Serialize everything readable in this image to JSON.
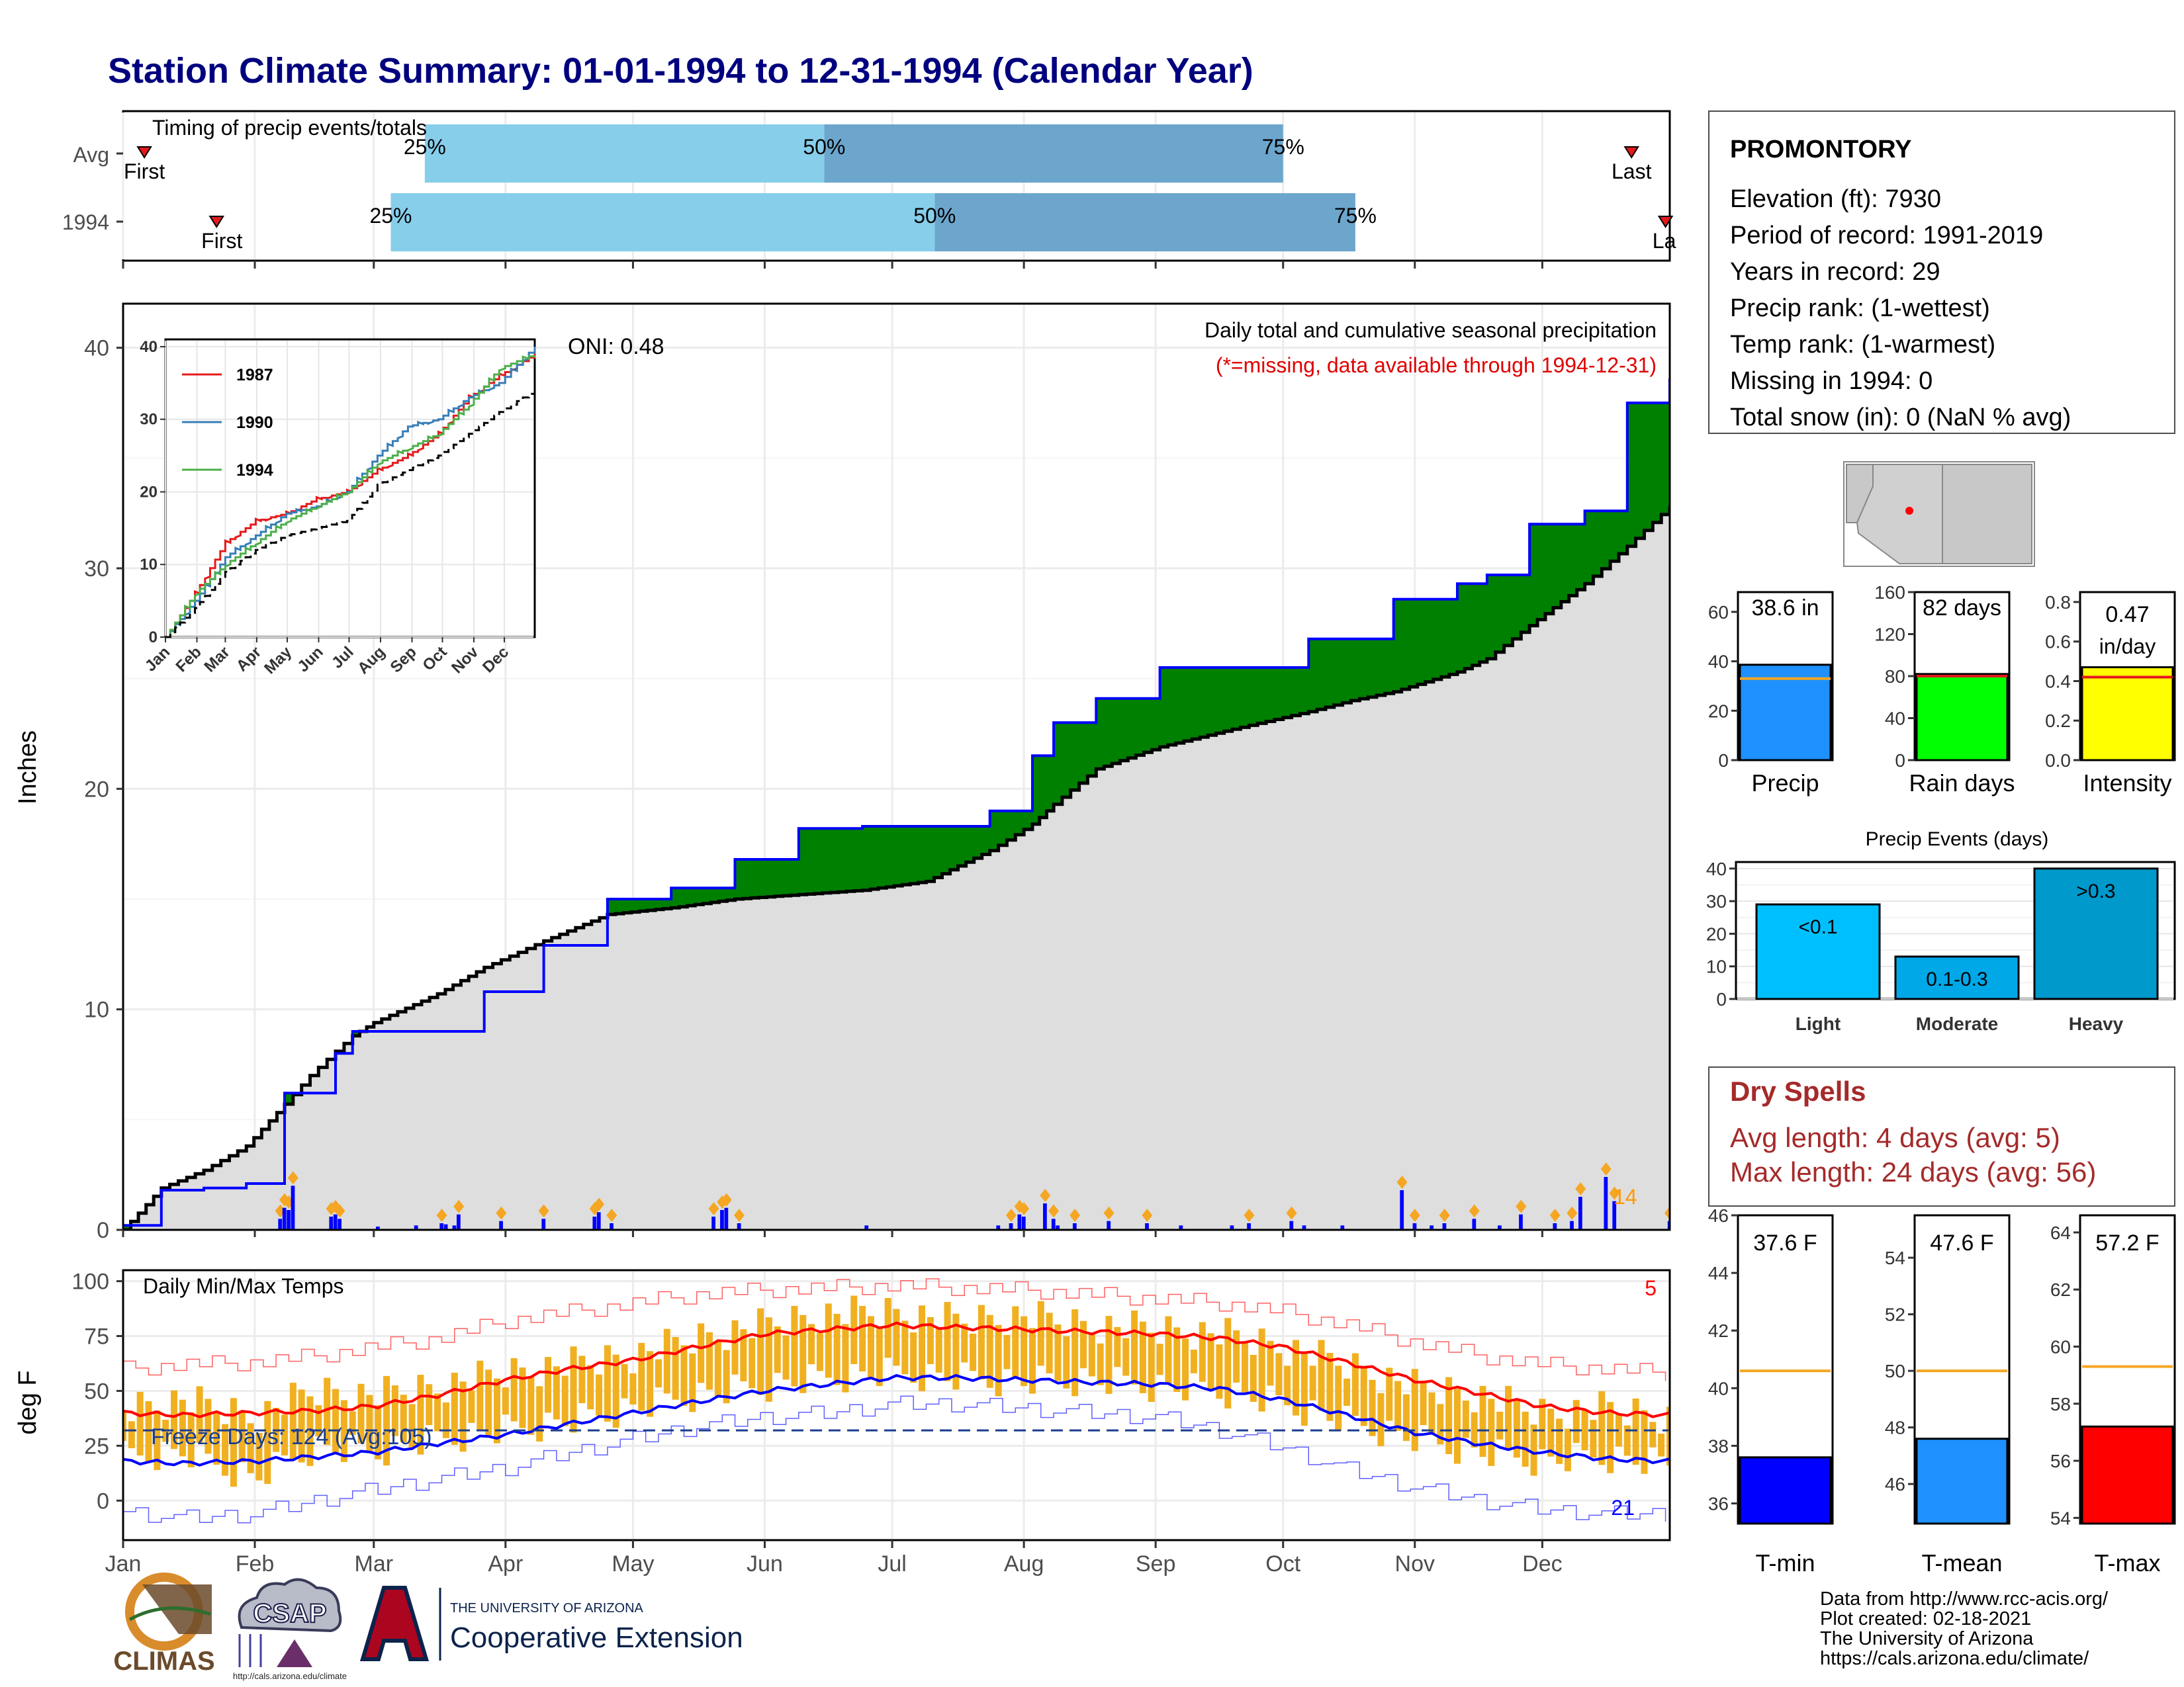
{
  "title": "Station Climate Summary: 01-01-1994 to 12-31-1994 (Calendar Year)",
  "colors": {
    "title": "#00007F",
    "cum_avg_fill": "#DEDEDE",
    "above_fill": "#008000",
    "below_fill": "#7F5000",
    "precip_line": "#0000FF",
    "tmax_line": "#FF0000",
    "tmin_line": "#0000FF",
    "temp_bar": "#F0B020",
    "timing_light": "#87CEEB",
    "timing_dark": "#6CA6CD",
    "dry_spells": "#A52A2A"
  },
  "months": [
    "Jan",
    "Feb",
    "Mar",
    "Apr",
    "May",
    "Jun",
    "Jul",
    "Aug",
    "Sep",
    "Oct",
    "Nov",
    "Dec"
  ],
  "timing": {
    "title": "Timing of precip events/totals",
    "rows": [
      {
        "label": "Avg",
        "first_label": "First",
        "last_label": "Last",
        "first_doy": 6,
        "last_doy": 356,
        "p25_label": "25%",
        "p50_label": "50%",
        "p75_label": "75%",
        "p25_doy": 72,
        "p50_doy": 166,
        "p75_doy": 274
      },
      {
        "label": "1994",
        "first_label": "First",
        "last_label": "La",
        "first_doy": 23,
        "last_doy": 364,
        "p25_label": "25%",
        "p50_label": "50%",
        "p75_label": "75%",
        "p25_doy": 64,
        "p50_doy": 192,
        "p75_doy": 291
      }
    ]
  },
  "precip_panel": {
    "ylabel": "Inches",
    "yticks": [
      0,
      10,
      20,
      30,
      40
    ],
    "ylim": [
      0,
      42
    ],
    "oni_label": "ONI: 0.48",
    "caption1": "Daily total and cumulative seasonal precipitation",
    "caption2": "(*=missing, data available through 1994-12-31)",
    "count_label": "14"
  },
  "inset": {
    "yticks": [
      0,
      10,
      20,
      30,
      40
    ],
    "ylim": [
      0,
      41
    ],
    "xticks": [
      "Jan",
      "Feb",
      "Mar",
      "Apr",
      "May",
      "Jun",
      "Jul",
      "Aug",
      "Sep",
      "Oct",
      "Nov",
      "Dec"
    ],
    "legend": [
      {
        "label": "1987",
        "color": "#E41A1C"
      },
      {
        "label": "1990",
        "color": "#377EB8"
      },
      {
        "label": "1994",
        "color": "#4DAF4A"
      }
    ]
  },
  "temp_panel": {
    "ylabel": "deg F",
    "title": "Daily Min/Max Temps",
    "yticks": [
      0,
      25,
      50,
      75,
      100
    ],
    "ylim": [
      -18,
      105
    ],
    "freeze_label": "Freeze Days: 124 (Avg:105)",
    "freeze_line": 32,
    "count_top": "5",
    "count_bottom": "21"
  },
  "station": {
    "name": "PROMONTORY",
    "lines": [
      "Elevation (ft): 7930",
      "Period of record: 1991-2019",
      "Years in record: 29",
      "Precip rank:  (1-wettest)",
      "Temp rank:  (1-warmest)",
      "Missing in 1994: 0",
      "Total snow (in): 0 (NaN % avg)"
    ]
  },
  "chart_data": [
    {
      "type": "area",
      "name": "cumulative_precip",
      "x": [
        1,
        10,
        20,
        30,
        39,
        45,
        51,
        55,
        60,
        75,
        86,
        100,
        115,
        130,
        145,
        160,
        175,
        190,
        205,
        215,
        220,
        230,
        245,
        262,
        280,
        290,
        300,
        315,
        322,
        332,
        345,
        355,
        365
      ],
      "series": [
        {
          "name": "Observed",
          "values": [
            0.2,
            1.8,
            1.9,
            2.1,
            6.2,
            6.2,
            8.0,
            9.0,
            9.0,
            9.0,
            10.8,
            12.9,
            15.0,
            15.5,
            16.8,
            18.2,
            18.3,
            18.3,
            19.0,
            21.5,
            23.0,
            24.1,
            25.5,
            25.5,
            26.8,
            26.8,
            28.6,
            29.3,
            29.7,
            32.0,
            32.6,
            37.5,
            38.6
          ]
        },
        {
          "name": "Average",
          "values": [
            0,
            1.9,
            2.7,
            3.8,
            5.7,
            7.0,
            8.1,
            8.8,
            9.4,
            10.7,
            11.9,
            13.1,
            14.3,
            14.6,
            15.0,
            15.2,
            15.4,
            15.8,
            17.2,
            18.4,
            19.3,
            20.9,
            21.9,
            22.7,
            23.5,
            24.0,
            24.4,
            25.3,
            25.9,
            27.4,
            29.3,
            31.0,
            32.8
          ]
        }
      ],
      "ylabel": "Inches",
      "ylim": [
        0,
        42
      ]
    },
    {
      "type": "bar",
      "name": "daily_precip",
      "x": [
        38,
        39,
        40,
        41,
        50,
        51,
        52,
        61,
        70,
        76,
        77,
        79,
        80,
        90,
        100,
        112,
        113,
        116,
        140,
        142,
        143,
        146,
        176,
        207,
        210,
        212,
        213,
        218,
        220,
        221,
        225,
        233,
        242,
        250,
        262,
        266,
        276,
        279,
        288,
        302,
        305,
        309,
        312,
        319,
        325,
        330,
        338,
        342,
        344,
        350,
        352,
        365
      ],
      "values": [
        0.5,
        1.0,
        0.9,
        2.0,
        0.6,
        0.7,
        0.5,
        0.15,
        0.2,
        0.3,
        0.25,
        0.2,
        0.7,
        0.4,
        0.5,
        0.6,
        0.8,
        0.3,
        0.6,
        0.9,
        1.0,
        0.3,
        0.2,
        0.2,
        0.3,
        0.7,
        0.6,
        1.2,
        0.5,
        0.2,
        0.3,
        0.4,
        0.3,
        0.2,
        0.2,
        0.3,
        0.4,
        0.2,
        0.2,
        1.8,
        0.3,
        0.2,
        0.3,
        0.5,
        0.2,
        0.7,
        0.3,
        0.4,
        1.5,
        2.4,
        1.3,
        0.4
      ]
    },
    {
      "type": "line",
      "name": "inset_cumulative",
      "x": [
        1,
        30,
        60,
        90,
        120,
        150,
        180,
        210,
        240,
        270,
        300,
        330,
        365
      ],
      "series": [
        {
          "name": "1987",
          "values": [
            0,
            6,
            13,
            16,
            17,
            19,
            20,
            23,
            25,
            28,
            33,
            36,
            39
          ]
        },
        {
          "name": "1990",
          "values": [
            0,
            5,
            11,
            14,
            17,
            18,
            20,
            25,
            29,
            30,
            33,
            35,
            40
          ]
        },
        {
          "name": "1994",
          "values": [
            0,
            6,
            10,
            13,
            16,
            18,
            20,
            24,
            26,
            28,
            32,
            37,
            39
          ]
        },
        {
          "name": "Average",
          "values": [
            0,
            4,
            9,
            12,
            14,
            15,
            16,
            21,
            23,
            25,
            28,
            31,
            34
          ]
        }
      ],
      "ylim": [
        0,
        41
      ]
    },
    {
      "type": "line",
      "name": "daily_temps",
      "x": [
        1,
        15,
        32,
        46,
        60,
        75,
        91,
        106,
        121,
        136,
        152,
        167,
        182,
        197,
        213,
        228,
        244,
        259,
        274,
        289,
        305,
        320,
        335,
        350,
        365
      ],
      "series": [
        {
          "name": "Avg max",
          "values": [
            40,
            39,
            40,
            41,
            43,
            48,
            55,
            60,
            64,
            70,
            76,
            78,
            80,
            79,
            78,
            77,
            76,
            74,
            70,
            63,
            55,
            49,
            43,
            40,
            39
          ]
        },
        {
          "name": "Avg min",
          "values": [
            18,
            17,
            18,
            20,
            22,
            26,
            30,
            35,
            40,
            45,
            50,
            53,
            56,
            56,
            55,
            54,
            53,
            51,
            46,
            39,
            31,
            26,
            22,
            19,
            18
          ]
        },
        {
          "name": "Record max",
          "values": [
            60,
            62,
            63,
            66,
            70,
            74,
            82,
            86,
            90,
            94,
            96,
            97,
            98,
            97,
            96,
            94,
            92,
            90,
            86,
            80,
            72,
            66,
            62,
            60,
            58
          ]
        },
        {
          "name": "Record min",
          "values": [
            -5,
            -8,
            -6,
            0,
            5,
            10,
            15,
            22,
            28,
            34,
            38,
            40,
            44,
            44,
            42,
            40,
            38,
            32,
            24,
            14,
            6,
            0,
            -4,
            -6,
            -6
          ]
        },
        {
          "name": "1994 max",
          "values": [
            42,
            46,
            38,
            50,
            48,
            52,
            58,
            62,
            66,
            74,
            80,
            85,
            86,
            82,
            84,
            80,
            78,
            76,
            70,
            62,
            52,
            48,
            40,
            42,
            38
          ]
        },
        {
          "name": "1994 min",
          "values": [
            20,
            22,
            10,
            24,
            22,
            28,
            32,
            36,
            42,
            48,
            52,
            56,
            58,
            56,
            54,
            55,
            52,
            50,
            44,
            36,
            28,
            22,
            18,
            20,
            16
          ]
        }
      ],
      "ylabel": "deg F",
      "ylim": [
        -18,
        105
      ]
    },
    {
      "type": "bar",
      "name": "precip_summary",
      "panels": [
        {
          "name": "Precip",
          "label": "38.6 in",
          "value": 38.6,
          "avg": 33,
          "ylim": [
            0,
            68
          ],
          "ticks": [
            0,
            20,
            40,
            60
          ],
          "color": "#1E90FF"
        },
        {
          "name": "Rain days",
          "label": "82 days",
          "value": 82,
          "avg": 80,
          "ylim": [
            0,
            160
          ],
          "ticks": [
            0,
            40,
            80,
            120,
            160
          ],
          "color": "#00FF00"
        },
        {
          "name": "Intensity",
          "label": "0.47 in/day",
          "value": 0.47,
          "avg": 0.42,
          "ylim": [
            0,
            0.85
          ],
          "ticks": [
            0.0,
            0.2,
            0.4,
            0.6,
            0.8
          ],
          "color": "#FFFF00"
        }
      ]
    },
    {
      "type": "bar",
      "name": "precip_events",
      "title": "Precip Events (days)",
      "categories": [
        "Light",
        "Moderate",
        "Heavy"
      ],
      "bar_labels": [
        "<0.1",
        "0.1-0.3",
        ">0.3"
      ],
      "values": [
        29,
        13,
        40
      ],
      "ylim": [
        0,
        42
      ],
      "ticks": [
        0,
        10,
        20,
        30,
        40
      ],
      "colors": [
        "#00BFFF",
        "#00A8E8",
        "#0099CC"
      ]
    },
    {
      "type": "bar",
      "name": "temp_summary",
      "panels": [
        {
          "name": "T-min",
          "label": "37.6 F",
          "value": 37.6,
          "avg": 40.6,
          "ylim": [
            35.3,
            46
          ],
          "ticks": [
            36,
            38,
            40,
            42,
            44,
            46
          ],
          "color": "#0000FF"
        },
        {
          "name": "T-mean",
          "label": "47.6 F",
          "value": 47.6,
          "avg": 50,
          "ylim": [
            44.6,
            55.5
          ],
          "ticks": [
            46,
            48,
            50,
            52,
            54
          ],
          "color": "#1E90FF"
        },
        {
          "name": "T-max",
          "label": "57.2 F",
          "value": 57.2,
          "avg": 59.3,
          "ylim": [
            53.8,
            64.6
          ],
          "ticks": [
            54,
            56,
            58,
            60,
            62,
            64
          ],
          "color": "#FF0000"
        }
      ]
    }
  ],
  "dry_spells": {
    "title": "Dry Spells",
    "avg_line": "Avg length: 4 days (avg: 5)",
    "max_line": "Max length: 24 days (avg: 56)"
  },
  "footer": {
    "lines": [
      "Data from http://www.rcc-acis.org/",
      "Plot created: 02-18-2021",
      "The University of Arizona",
      "https://cals.arizona.edu/climate/"
    ]
  },
  "logos": {
    "climas": "CLIMAS",
    "csap": "CSAP",
    "csap_url": "http://cals.arizona.edu/climate",
    "ua_small": "THE UNIVERSITY OF ARIZONA",
    "ua_large": "Cooperative Extension"
  }
}
